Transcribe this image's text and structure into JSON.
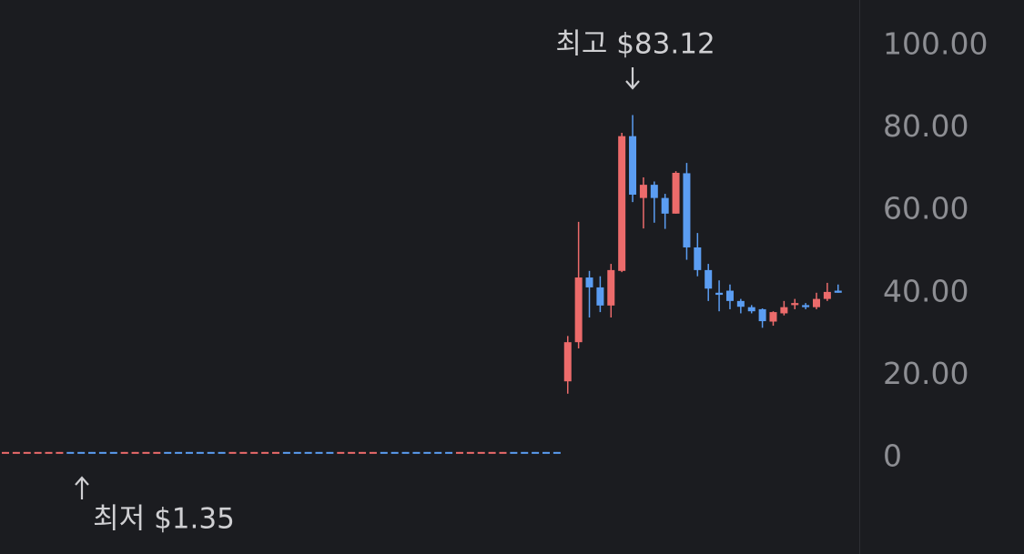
{
  "chart_data": {
    "type": "candlestick",
    "up_color": "#ec6b6b",
    "down_color": "#5b9df2",
    "ylim": [
      -23.4,
      111.04
    ],
    "yticks": [
      {
        "value": 100,
        "label": "100.00"
      },
      {
        "value": 80,
        "label": "80.00"
      },
      {
        "value": 60,
        "label": "60.00"
      },
      {
        "value": 40,
        "label": "40.00"
      },
      {
        "value": 20,
        "label": "20.00"
      },
      0
    ],
    "grid": false,
    "annotations": [
      {
        "text": "최고 $83.12"
      },
      {
        "text": "최저 $1.35"
      }
    ],
    "open": [
      1.35,
      1.35,
      1.35,
      1.35,
      1.35,
      1.35,
      1.36,
      1.36,
      1.36,
      1.36,
      1.36,
      1.35,
      1.35,
      1.35,
      1.35,
      1.36,
      1.36,
      1.36,
      1.36,
      1.36,
      1.36,
      1.35,
      1.35,
      1.35,
      1.35,
      1.35,
      1.36,
      1.36,
      1.36,
      1.36,
      1.36,
      1.35,
      1.35,
      1.35,
      1.35,
      1.36,
      1.36,
      1.36,
      1.36,
      1.36,
      1.36,
      1.36,
      1.35,
      1.35,
      1.35,
      1.35,
      1.35,
      1.36,
      1.36,
      1.36,
      1.36,
      1.36,
      18.5,
      28,
      43.7,
      41.3,
      36.9,
      45.3,
      78,
      63,
      66.2,
      63,
      59.2,
      69,
      51,
      45.5,
      40,
      40.5,
      38,
      36.5,
      36,
      33,
      35,
      37,
      37,
      36.5,
      38.5,
      40.5
    ],
    "high": [
      1.36,
      1.36,
      1.36,
      1.36,
      1.36,
      1.36,
      1.36,
      1.36,
      1.36,
      1.36,
      1.36,
      1.36,
      1.36,
      1.36,
      1.36,
      1.36,
      1.36,
      1.36,
      1.36,
      1.36,
      1.36,
      1.36,
      1.36,
      1.36,
      1.36,
      1.36,
      1.36,
      1.36,
      1.36,
      1.36,
      1.36,
      1.36,
      1.36,
      1.36,
      1.36,
      1.36,
      1.36,
      1.36,
      1.36,
      1.36,
      1.36,
      1.36,
      1.36,
      1.36,
      1.36,
      1.36,
      1.36,
      1.36,
      1.36,
      1.36,
      1.36,
      1.36,
      29.5,
      57.2,
      45.3,
      44,
      47,
      78.8,
      83.12,
      68,
      67,
      64,
      69.5,
      71.5,
      54.5,
      47,
      43,
      42,
      38.5,
      37,
      36.2,
      35.5,
      38,
      38.5,
      37.5,
      40,
      42.4,
      42
    ],
    "low": [
      1.35,
      1.35,
      1.35,
      1.35,
      1.35,
      1.35,
      1.35,
      1.35,
      1.35,
      1.35,
      1.35,
      1.35,
      1.35,
      1.35,
      1.35,
      1.35,
      1.35,
      1.35,
      1.35,
      1.35,
      1.35,
      1.35,
      1.35,
      1.35,
      1.35,
      1.35,
      1.35,
      1.35,
      1.35,
      1.35,
      1.35,
      1.35,
      1.35,
      1.35,
      1.35,
      1.35,
      1.35,
      1.35,
      1.35,
      1.35,
      1.35,
      1.35,
      1.35,
      1.35,
      1.35,
      1.35,
      1.35,
      1.35,
      1.35,
      1.35,
      1.35,
      1.35,
      15.5,
      26.5,
      34,
      35.3,
      34,
      45,
      62,
      55.6,
      57,
      55.5,
      59.2,
      48,
      44,
      38,
      35.5,
      36,
      35,
      35,
      31.5,
      32,
      34.5,
      36,
      36,
      36,
      38,
      40
    ],
    "close": [
      1.36,
      1.36,
      1.36,
      1.36,
      1.36,
      1.36,
      1.35,
      1.35,
      1.35,
      1.35,
      1.35,
      1.36,
      1.36,
      1.36,
      1.36,
      1.35,
      1.35,
      1.35,
      1.35,
      1.35,
      1.35,
      1.36,
      1.36,
      1.36,
      1.36,
      1.36,
      1.35,
      1.35,
      1.35,
      1.35,
      1.35,
      1.36,
      1.36,
      1.36,
      1.36,
      1.35,
      1.35,
      1.35,
      1.35,
      1.35,
      1.35,
      1.35,
      1.36,
      1.36,
      1.36,
      1.36,
      1.36,
      1.35,
      1.35,
      1.35,
      1.35,
      1.35,
      28,
      43.7,
      41.3,
      36.9,
      45.5,
      78,
      63.8,
      66.2,
      63,
      59.2,
      69.1,
      51,
      45.5,
      41,
      39.5,
      38,
      36.6,
      35.5,
      33.1,
      35.3,
      36.5,
      37.5,
      36.5,
      38.5,
      40.2,
      40
    ]
  }
}
